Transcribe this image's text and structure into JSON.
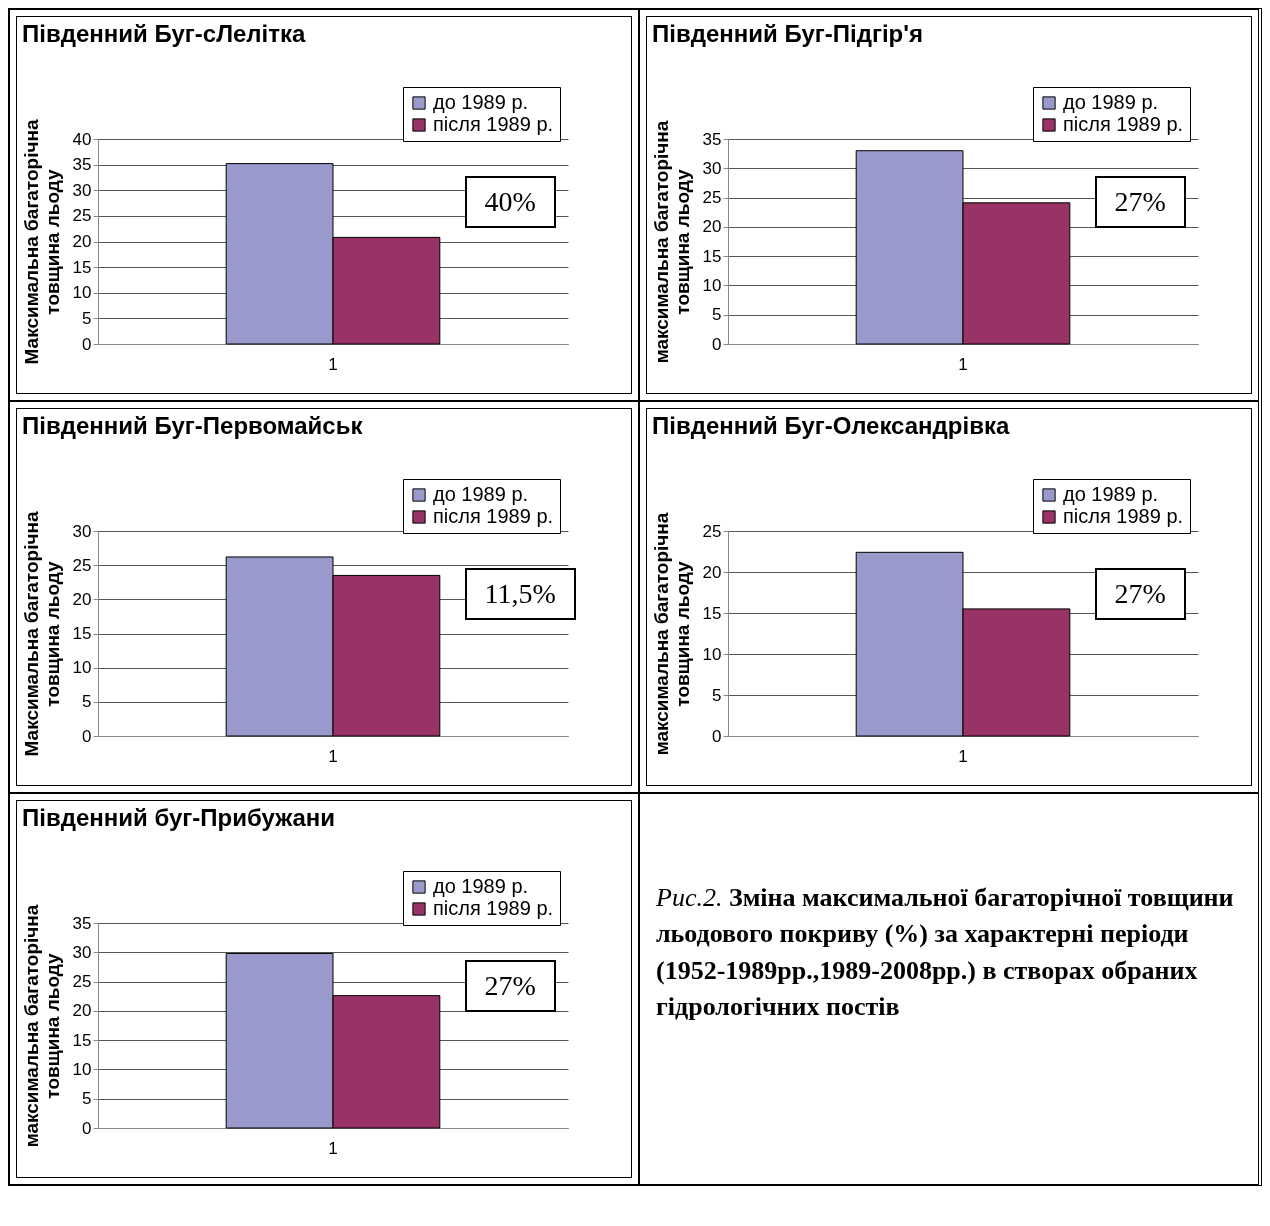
{
  "chart_data": [
    {
      "type": "bar",
      "title": "Південний Буг-сЛелітка",
      "ylabel": "Максимальна багаторічна товщина льоду",
      "categories": [
        "1"
      ],
      "series": [
        {
          "name": "до 1989 р.",
          "color": "#9999cc",
          "values": [
            35.2
          ]
        },
        {
          "name": "після 1989 р.",
          "color": "#993366",
          "values": [
            20.8
          ]
        }
      ],
      "ylim": [
        0,
        40
      ],
      "yticks": [
        0,
        5,
        10,
        15,
        20,
        25,
        30,
        35,
        40
      ],
      "grid": "y",
      "legend": "top right",
      "annotations": [
        "40%"
      ]
    },
    {
      "type": "bar",
      "title": "Південний Буг-Підгір'я",
      "ylabel": "максимальна багаторічна товщина льоду",
      "categories": [
        "1"
      ],
      "series": [
        {
          "name": "до 1989 р.",
          "color": "#9999cc",
          "values": [
            33
          ]
        },
        {
          "name": "після 1989 р.",
          "color": "#993366",
          "values": [
            24.1
          ]
        }
      ],
      "ylim": [
        0,
        35
      ],
      "yticks": [
        0,
        5,
        10,
        15,
        20,
        25,
        30,
        35
      ],
      "grid": "y",
      "legend": "top right",
      "annotations": [
        "27%"
      ]
    },
    {
      "type": "bar",
      "title": "Південний Буг-Первомайськ",
      "ylabel": "Максимальна багаторічна товщина льоду",
      "categories": [
        "1"
      ],
      "series": [
        {
          "name": "до 1989 р.",
          "color": "#9999cc",
          "values": [
            26.2
          ]
        },
        {
          "name": "після 1989 р.",
          "color": "#993366",
          "values": [
            23.5
          ]
        }
      ],
      "ylim": [
        0,
        30
      ],
      "yticks": [
        0,
        5,
        10,
        15,
        20,
        25,
        30
      ],
      "grid": "y",
      "legend": "top right",
      "annotations": [
        "11,5%"
      ]
    },
    {
      "type": "bar",
      "title": "Південний Буг-Олександрівка",
      "ylabel": "максимальна багаторічна товщина льоду",
      "categories": [
        "1"
      ],
      "series": [
        {
          "name": "до 1989 р.",
          "color": "#9999cc",
          "values": [
            22.4
          ]
        },
        {
          "name": "після 1989 р.",
          "color": "#993366",
          "values": [
            15.5
          ]
        }
      ],
      "ylim": [
        0,
        25
      ],
      "yticks": [
        0,
        5,
        10,
        15,
        20,
        25
      ],
      "grid": "y",
      "legend": "top right",
      "annotations": [
        "27%"
      ]
    },
    {
      "type": "bar",
      "title": "Південний буг-Прибужани",
      "ylabel": "максимальна багаторічна товщина льоду",
      "categories": [
        "1"
      ],
      "series": [
        {
          "name": "до 1989 р.",
          "color": "#9999cc",
          "values": [
            29.8
          ]
        },
        {
          "name": "після 1989 р.",
          "color": "#993366",
          "values": [
            22.6
          ]
        }
      ],
      "ylim": [
        0,
        35
      ],
      "yticks": [
        0,
        5,
        10,
        15,
        20,
        25,
        30,
        35
      ],
      "grid": "y",
      "legend": "top right",
      "annotations": [
        "27%"
      ]
    },
    {
      "type": "other",
      "annotations": [
        "Рис.2.",
        "Зміна максимальної багаторічної товщини льодового покриву (%) за характерні періоди (1952-1989рр.,1989-2008рр.) в створах обраних гідрологічних постів"
      ]
    }
  ]
}
